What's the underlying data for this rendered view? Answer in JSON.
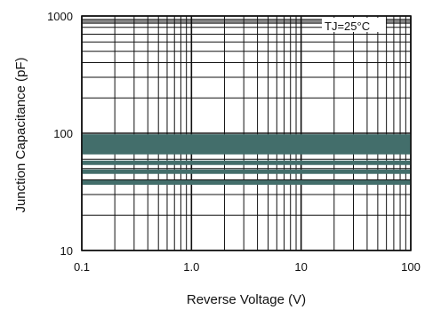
{
  "chart_data": {
    "type": "line",
    "title": "",
    "xlabel": "Reverse Voltage (V)",
    "ylabel": "Junction Capacitance (pF)",
    "x_scale": "log",
    "y_scale": "log",
    "xlim": [
      0.1,
      100
    ],
    "ylim": [
      10,
      1000
    ],
    "x_ticks": [
      "0.1",
      "1.0",
      "10",
      "100"
    ],
    "y_ticks": [
      "10",
      "100",
      "1000"
    ],
    "grid": true,
    "annotation": "TJ=25°C",
    "series": [
      {
        "style": "band",
        "y_range": [
          66,
          98
        ],
        "x": [
          0.1,
          100
        ]
      },
      {
        "style": "line",
        "y": 56,
        "x": [
          0.1,
          100
        ]
      },
      {
        "style": "line",
        "y": 47,
        "x": [
          0.1,
          100
        ]
      },
      {
        "style": "line",
        "y": 38,
        "x": [
          0.1,
          100
        ]
      }
    ],
    "colors": {
      "series": "#436e6b",
      "grid": "#111111"
    }
  }
}
